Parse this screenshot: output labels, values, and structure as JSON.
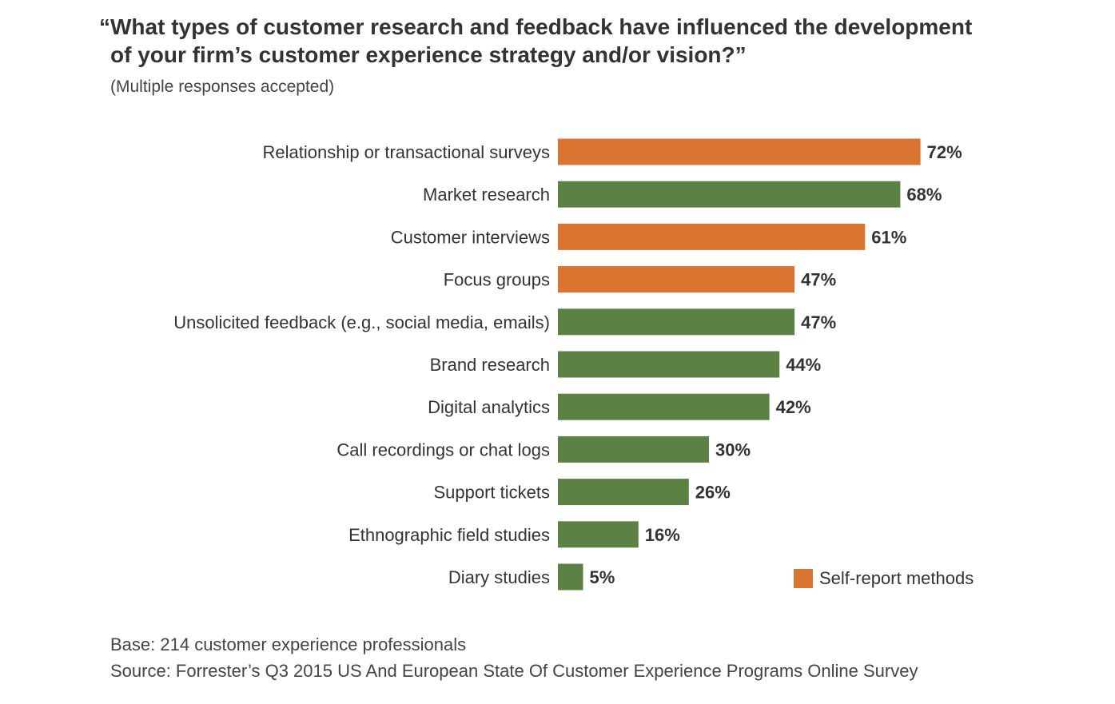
{
  "title": {
    "line1": "“What types of customer research and feedback have influenced the development",
    "line2": "of your firm’s customer experience strategy and/or vision?”"
  },
  "subtitle": "(Multiple responses accepted)",
  "colors": {
    "self_report": "#D97431",
    "other": "#5B8244",
    "text": "#333333"
  },
  "legend": {
    "label": "Self-report methods",
    "color": "#D97431"
  },
  "footer": {
    "base": "Base: 214 customer experience professionals",
    "source": "Source: Forrester’s Q3 2015 US And European State Of Customer Experience Programs Online Survey"
  },
  "chart_data": {
    "type": "bar",
    "orientation": "horizontal",
    "unit": "%",
    "xlim": [
      0,
      100
    ],
    "grid": false,
    "legend_position": "bottom-right",
    "categories": [
      "Relationship or transactional surveys",
      "Market research",
      "Customer interviews",
      "Focus groups",
      "Unsolicited feedback (e.g., social media, emails)",
      "Brand research",
      "Digital analytics",
      "Call recordings or chat logs",
      "Support tickets",
      "Ethnographic field studies",
      "Diary studies"
    ],
    "values": [
      72,
      68,
      61,
      47,
      47,
      44,
      42,
      30,
      26,
      16,
      5
    ],
    "value_labels": [
      "72%",
      "68%",
      "61%",
      "47%",
      "47%",
      "44%",
      "42%",
      "30%",
      "26%",
      "16%",
      "5%"
    ],
    "self_report": [
      true,
      false,
      true,
      true,
      false,
      false,
      false,
      false,
      false,
      false,
      false
    ]
  }
}
